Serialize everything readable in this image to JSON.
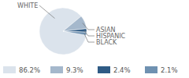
{
  "chart_data": {
    "type": "pie",
    "categories": [
      "WHITE",
      "ASIAN",
      "HISPANIC",
      "BLACK"
    ],
    "values": [
      86.2,
      9.3,
      2.4,
      2.1
    ],
    "value_labels": [
      "86.2%",
      "9.3%",
      "2.4%",
      "2.1%"
    ],
    "colors": [
      "#dbe3ec",
      "#a5b8cc",
      "#2f5b85",
      "#6f91b1"
    ],
    "legend": "bottom"
  }
}
